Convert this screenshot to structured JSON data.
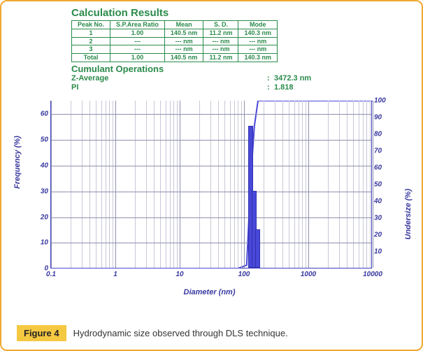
{
  "calc": {
    "title": "Calculation Results",
    "headers": [
      "Peak No.",
      "S.P.Area Ratio",
      "Mean",
      "S. D.",
      "Mode"
    ],
    "rows": [
      [
        "1",
        "1.00",
        "140.5 nm",
        "11.2 nm",
        "140.3 nm"
      ],
      [
        "2",
        "---",
        "--- nm",
        "--- nm",
        "--- nm"
      ],
      [
        "3",
        "---",
        "--- nm",
        "--- nm",
        "--- nm"
      ],
      [
        "Total",
        "1.00",
        "140.5 nm",
        "11.2 nm",
        "140.3 nm"
      ]
    ]
  },
  "cumulant": {
    "title": "Cumulant Operations",
    "items": [
      {
        "label": "Z-Average",
        "value": "3472.3 nm"
      },
      {
        "label": "PI",
        "value": "1.818"
      }
    ]
  },
  "chart": {
    "type": "histogram+cumulative",
    "xlabel": "Diameter (nm)",
    "ylabel_left": "Frequency (%)",
    "ylabel_right": "Undersize (%)",
    "x_scale": "log",
    "x_decades": [
      0.1,
      1,
      10,
      100,
      1000,
      10000
    ],
    "y_left_ticks": [
      0,
      10,
      20,
      30,
      40,
      50,
      60
    ],
    "y_left_max": 65,
    "y_right_ticks": [
      10,
      20,
      30,
      40,
      50,
      60,
      70,
      80,
      90,
      100
    ],
    "y_right_max": 100,
    "bars": [
      {
        "x_nm": 128,
        "freq_pct": 55
      },
      {
        "x_nm": 145,
        "freq_pct": 30
      },
      {
        "x_nm": 165,
        "freq_pct": 15
      }
    ],
    "cumulative": [
      {
        "x_nm": 0.1,
        "pct": 0
      },
      {
        "x_nm": 80,
        "pct": 0
      },
      {
        "x_nm": 110,
        "pct": 2
      },
      {
        "x_nm": 128,
        "pct": 55
      },
      {
        "x_nm": 145,
        "pct": 85
      },
      {
        "x_nm": 165,
        "pct": 100
      },
      {
        "x_nm": 10000,
        "pct": 100
      }
    ],
    "colors": {
      "axis": "#3838a0",
      "grid_major": "#9090b0",
      "grid_minor": "#c8c8d8",
      "series": "#4848d8",
      "background": "#ffffff"
    }
  },
  "caption": {
    "label": "Figure 4",
    "text": "Hydrodynamic size observed through DLS technique."
  }
}
